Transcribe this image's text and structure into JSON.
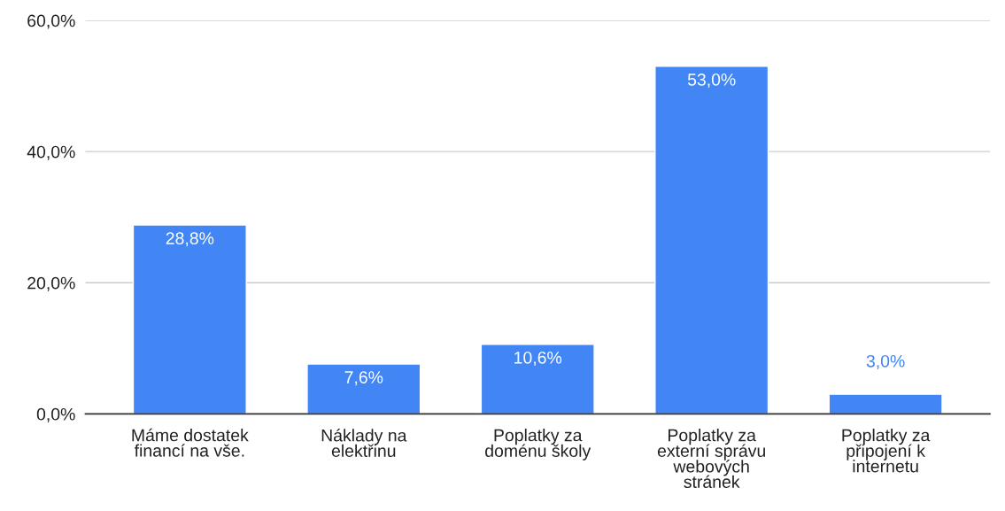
{
  "chart_data": {
    "type": "bar",
    "categories": [
      "Máme dostatek\nfinancí na vše.",
      "Náklady na\nelektřinu",
      "Poplatky za\ndoménu školy",
      "Poplatky za\nexterní správu\nwebových\nstránek",
      "Poplatky za\npřipojení k\ninternetu"
    ],
    "values": [
      28.8,
      7.6,
      10.6,
      53.0,
      3.0
    ],
    "value_labels": [
      "28,8%",
      "7,6%",
      "10,6%",
      "53,0%",
      "3,0%"
    ],
    "color": "#4285f4",
    "ylim": [
      0,
      60
    ],
    "yticks": [
      {
        "value": 0,
        "label": "0,0%"
      },
      {
        "value": 20,
        "label": "20,0%"
      },
      {
        "value": 40,
        "label": "40,0%"
      },
      {
        "value": 60,
        "label": "60,0%"
      }
    ],
    "grid": "y"
  }
}
